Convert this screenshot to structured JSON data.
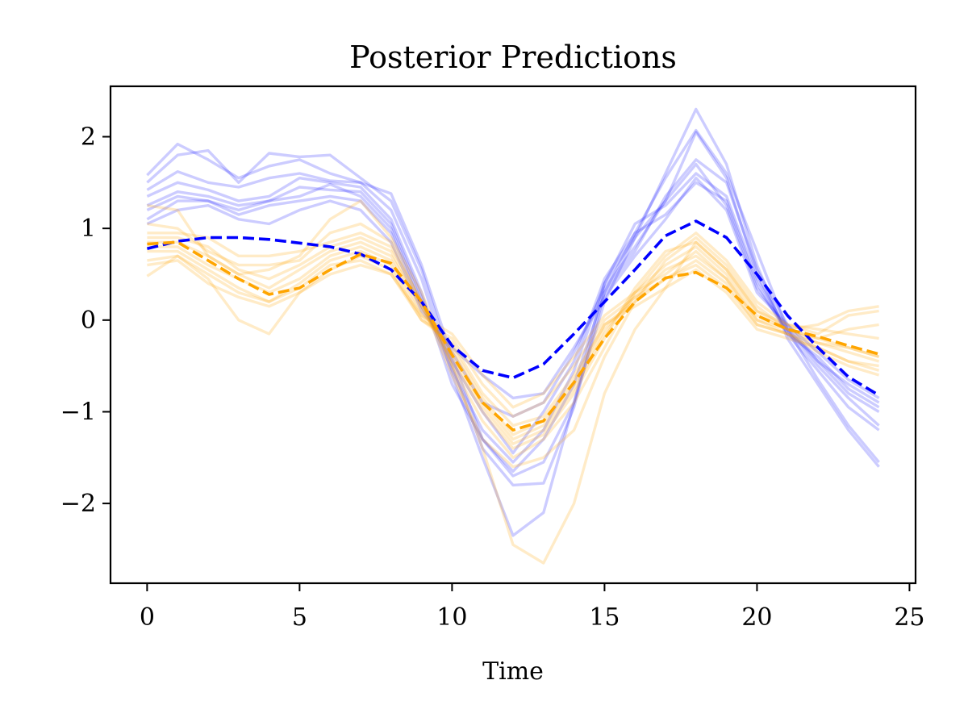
{
  "chart_data": {
    "type": "line",
    "title": "Posterior Predictions",
    "xlabel": "Time",
    "ylabel": "",
    "xlim": [
      -1.2,
      25.2
    ],
    "ylim": [
      -2.87,
      2.55
    ],
    "xticks": [
      0,
      5,
      10,
      15,
      20,
      25
    ],
    "xtick_labels": [
      "0",
      "5",
      "10",
      "15",
      "20",
      "25"
    ],
    "yticks": [
      -2,
      -1,
      0,
      1,
      2
    ],
    "ytick_labels": [
      "−2",
      "−1",
      "0",
      "1",
      "2"
    ],
    "grid": false,
    "legend": null,
    "colors": {
      "blue": "#0000ff",
      "orange": "#ffa500"
    },
    "x": [
      0,
      1,
      2,
      3,
      4,
      5,
      6,
      7,
      8,
      9,
      10,
      11,
      12,
      13,
      14,
      15,
      16,
      17,
      18,
      19,
      20,
      21,
      22,
      23,
      24
    ],
    "series": [
      {
        "group": "blue",
        "style": "dashed",
        "values": [
          0.78,
          0.86,
          0.9,
          0.9,
          0.88,
          0.84,
          0.8,
          0.72,
          0.55,
          0.2,
          -0.28,
          -0.55,
          -0.63,
          -0.48,
          -0.15,
          0.2,
          0.55,
          0.92,
          1.08,
          0.9,
          0.5,
          0.05,
          -0.3,
          -0.62,
          -0.82
        ]
      },
      {
        "group": "orange",
        "style": "dashed",
        "values": [
          0.83,
          0.85,
          0.65,
          0.45,
          0.28,
          0.35,
          0.55,
          0.72,
          0.62,
          0.2,
          -0.38,
          -0.9,
          -1.2,
          -1.1,
          -0.68,
          -0.2,
          0.2,
          0.46,
          0.52,
          0.35,
          0.05,
          -0.1,
          -0.18,
          -0.28,
          -0.37
        ]
      },
      {
        "group": "blue",
        "style": "sample",
        "values": [
          1.58,
          1.92,
          1.75,
          1.55,
          1.68,
          1.75,
          1.6,
          1.5,
          1.38,
          0.6,
          -0.4,
          -1.3,
          -1.7,
          -1.55,
          -0.9,
          0.2,
          0.9,
          1.6,
          2.3,
          1.7,
          0.6,
          -0.2,
          -0.7,
          -1.2,
          -1.6
        ]
      },
      {
        "group": "blue",
        "style": "sample",
        "values": [
          1.5,
          1.8,
          1.85,
          1.5,
          1.82,
          1.78,
          1.8,
          1.55,
          1.3,
          0.55,
          -0.5,
          -1.4,
          -1.8,
          -1.78,
          -0.95,
          0.3,
          0.95,
          1.55,
          2.07,
          1.6,
          0.75,
          -0.1,
          -0.65,
          -1.15,
          -1.55
        ]
      },
      {
        "group": "blue",
        "style": "sample",
        "values": [
          1.42,
          1.62,
          1.5,
          1.45,
          1.55,
          1.6,
          1.52,
          1.5,
          1.2,
          0.45,
          -0.6,
          -1.5,
          -2.35,
          -2.1,
          -0.9,
          0.4,
          0.9,
          1.3,
          2.05,
          1.55,
          0.5,
          -0.15,
          -0.55,
          -0.95,
          -1.2
        ]
      },
      {
        "group": "blue",
        "style": "sample",
        "values": [
          1.35,
          1.5,
          1.42,
          1.3,
          1.35,
          1.55,
          1.5,
          1.45,
          1.1,
          0.3,
          -0.7,
          -1.3,
          -1.65,
          -1.3,
          -0.7,
          0.3,
          0.75,
          1.35,
          1.75,
          1.5,
          0.55,
          -0.05,
          -0.45,
          -0.8,
          -1.0
        ]
      },
      {
        "group": "blue",
        "style": "sample",
        "values": [
          1.25,
          1.4,
          1.35,
          1.25,
          1.3,
          1.45,
          1.42,
          1.4,
          1.05,
          0.25,
          -0.55,
          -1.2,
          -1.55,
          -1.2,
          -0.55,
          0.4,
          1.05,
          1.25,
          1.6,
          1.35,
          0.45,
          -0.1,
          -0.5,
          -0.85,
          -1.15
        ]
      },
      {
        "group": "blue",
        "style": "sample",
        "values": [
          1.2,
          1.35,
          1.3,
          1.2,
          1.3,
          1.35,
          1.48,
          1.35,
          1.0,
          0.2,
          -0.45,
          -1.0,
          -1.45,
          -1.0,
          -0.45,
          0.45,
          0.95,
          1.15,
          1.5,
          1.3,
          0.4,
          -0.15,
          -0.4,
          -0.75,
          -0.95
        ]
      },
      {
        "group": "blue",
        "style": "sample",
        "values": [
          1.1,
          1.3,
          1.3,
          1.15,
          1.25,
          1.3,
          1.35,
          1.3,
          0.95,
          0.15,
          -0.35,
          -0.9,
          -1.05,
          -0.9,
          -0.35,
          0.35,
          0.8,
          1.3,
          1.7,
          1.25,
          0.35,
          -0.1,
          -0.45,
          -0.7,
          -0.9
        ]
      },
      {
        "group": "blue",
        "style": "sample",
        "values": [
          1.05,
          1.2,
          1.25,
          1.1,
          1.05,
          1.2,
          1.3,
          1.2,
          0.85,
          0.1,
          -0.3,
          -0.6,
          -0.85,
          -0.8,
          -0.3,
          0.25,
          0.7,
          1.1,
          1.55,
          1.2,
          0.3,
          -0.05,
          -0.35,
          -0.65,
          -0.85
        ]
      },
      {
        "group": "orange",
        "style": "sample",
        "values": [
          1.25,
          1.2,
          0.7,
          0.5,
          0.55,
          0.7,
          1.1,
          1.3,
          0.9,
          0.3,
          -0.5,
          -1.4,
          -2.45,
          -2.65,
          -2.0,
          -0.8,
          -0.1,
          0.35,
          0.85,
          0.55,
          0.1,
          -0.05,
          -0.1,
          -0.15,
          -0.2
        ]
      },
      {
        "group": "orange",
        "style": "sample",
        "values": [
          1.05,
          1.0,
          0.75,
          0.6,
          0.6,
          0.65,
          0.95,
          1.05,
          0.85,
          0.2,
          -0.6,
          -1.3,
          -1.6,
          -1.5,
          -1.2,
          -0.4,
          0.2,
          0.65,
          0.9,
          0.6,
          0.15,
          -0.1,
          -0.05,
          0.1,
          0.15
        ]
      },
      {
        "group": "orange",
        "style": "sample",
        "values": [
          0.95,
          0.95,
          0.9,
          0.7,
          0.7,
          0.75,
          0.85,
          0.95,
          0.8,
          0.2,
          -0.5,
          -1.1,
          -1.5,
          -1.3,
          -0.9,
          -0.3,
          0.3,
          0.7,
          0.95,
          0.65,
          0.2,
          -0.05,
          -0.15,
          0.05,
          0.1
        ]
      },
      {
        "group": "orange",
        "style": "sample",
        "values": [
          0.9,
          0.9,
          0.8,
          0.55,
          0.45,
          0.6,
          0.8,
          0.9,
          0.75,
          0.15,
          -0.45,
          -1.0,
          -1.4,
          -1.25,
          -0.8,
          -0.2,
          0.35,
          0.75,
          0.85,
          0.55,
          0.1,
          -0.1,
          -0.2,
          -0.1,
          -0.05
        ]
      },
      {
        "group": "orange",
        "style": "sample",
        "values": [
          0.85,
          0.85,
          0.7,
          0.5,
          0.35,
          0.55,
          0.75,
          0.85,
          0.7,
          0.15,
          -0.4,
          -0.95,
          -1.35,
          -1.2,
          -0.75,
          -0.15,
          0.3,
          0.6,
          0.8,
          0.5,
          0.05,
          -0.1,
          -0.25,
          -0.3,
          -0.4
        ]
      },
      {
        "group": "orange",
        "style": "sample",
        "values": [
          0.8,
          0.8,
          0.6,
          0.45,
          0.3,
          0.45,
          0.7,
          0.8,
          0.65,
          0.1,
          -0.35,
          -0.9,
          -1.3,
          -1.15,
          -0.7,
          -0.1,
          0.25,
          0.55,
          0.7,
          0.45,
          0.0,
          -0.15,
          -0.3,
          -0.45,
          -0.55
        ]
      },
      {
        "group": "orange",
        "style": "sample",
        "values": [
          0.75,
          0.75,
          0.55,
          0.35,
          0.2,
          0.4,
          0.65,
          0.75,
          0.6,
          0.05,
          -0.3,
          -0.85,
          -1.25,
          -1.1,
          -0.65,
          -0.05,
          0.2,
          0.45,
          0.65,
          0.4,
          -0.05,
          -0.15,
          -0.35,
          -0.5,
          -0.6
        ]
      },
      {
        "group": "orange",
        "style": "sample",
        "values": [
          0.65,
          0.7,
          0.45,
          0.0,
          -0.15,
          0.3,
          0.55,
          0.7,
          0.55,
          0.0,
          -0.25,
          -0.8,
          -1.15,
          -1.05,
          -0.6,
          -0.05,
          0.15,
          0.35,
          0.55,
          0.3,
          -0.1,
          -0.2,
          -0.3,
          -0.45,
          -0.5
        ]
      },
      {
        "group": "orange",
        "style": "sample",
        "values": [
          0.48,
          0.7,
          0.5,
          0.3,
          0.2,
          0.35,
          0.6,
          0.65,
          0.5,
          0.0,
          -0.2,
          -0.7,
          -1.05,
          -0.9,
          -0.5,
          0.0,
          0.25,
          0.45,
          0.6,
          0.35,
          -0.05,
          -0.15,
          -0.25,
          -0.35,
          -0.45
        ]
      },
      {
        "group": "orange",
        "style": "sample",
        "values": [
          0.6,
          0.65,
          0.4,
          0.25,
          0.15,
          0.3,
          0.5,
          0.6,
          0.5,
          0.05,
          -0.15,
          -0.6,
          -0.95,
          -0.8,
          -0.4,
          0.05,
          0.3,
          0.5,
          0.75,
          0.45,
          0.0,
          -0.1,
          -0.2,
          -0.3,
          -0.4
        ]
      }
    ]
  }
}
